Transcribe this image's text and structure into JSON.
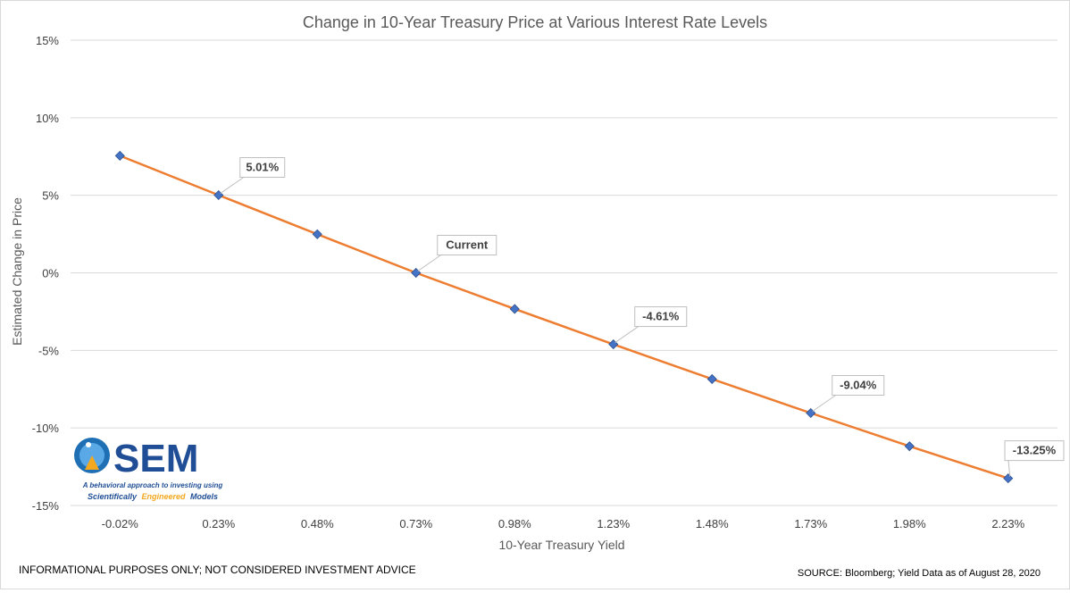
{
  "chart_data": {
    "type": "line",
    "title": "Change in 10-Year Treasury Price at Various Interest Rate Levels",
    "xlabel": "10-Year Treasury Yield",
    "ylabel": "Estimated Change in Price",
    "x_categories": [
      "-0.02%",
      "0.23%",
      "0.48%",
      "0.73%",
      "0.98%",
      "1.23%",
      "1.48%",
      "1.73%",
      "1.98%",
      "2.23%"
    ],
    "values": [
      7.55,
      5.01,
      2.49,
      0.0,
      -2.33,
      -4.61,
      -6.85,
      -9.04,
      -11.18,
      -13.25
    ],
    "ylim": [
      -15,
      15
    ],
    "yticks": [
      "15%",
      "10%",
      "5%",
      "0%",
      "-5%",
      "-10%",
      "-15%"
    ],
    "grid": "horizontal",
    "line_color": "#ED7D31",
    "marker_color": "#4472C4",
    "callouts": [
      {
        "index": 1,
        "text": "5.01%"
      },
      {
        "index": 3,
        "text": "Current"
      },
      {
        "index": 5,
        "text": "-4.61%"
      },
      {
        "index": 7,
        "text": "-9.04%"
      },
      {
        "index": 9,
        "text": "-13.25%"
      }
    ]
  },
  "logo": {
    "name": "SEM",
    "tagline": "A behavioral approach to investing using",
    "words": [
      "Scientifically",
      "Engineered",
      "Models"
    ]
  },
  "footer": {
    "left": "INFORMATIONAL PURPOSES ONLY; NOT CONSIDERED INVESTMENT ADVICE",
    "right": "SOURCE: Bloomberg; Yield Data as of August 28, 2020"
  }
}
